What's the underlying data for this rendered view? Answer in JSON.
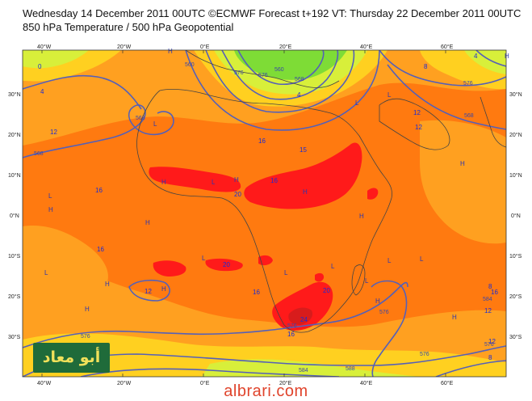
{
  "header": {
    "line1": "Wednesday 14 December 2011 00UTC ©ECMWF Forecast t+192 VT: Thursday 22 December 2011 00UTC",
    "line2": "850 hPa Temperature / 500 hPa Geopotential"
  },
  "axes": {
    "lon_ticks": [
      "40°W",
      "20°W",
      "0°E",
      "20°E",
      "40°E",
      "60°E"
    ],
    "lat_ticks_left": [
      "30°N",
      "20°N",
      "10°N",
      "0°N",
      "10°S",
      "20°S",
      "30°S"
    ],
    "lat_ticks_right": [
      "30°N",
      "20°N",
      "10°N",
      "0°N",
      "10°S",
      "20°S",
      "30°S"
    ]
  },
  "temp_labels": [
    "0",
    "4",
    "12",
    "12",
    "16",
    "20",
    "20",
    "16",
    "15",
    "16",
    "20",
    "24",
    "16",
    "12",
    "16",
    "12",
    "8",
    "4",
    "8",
    "12",
    "16",
    "8",
    "12",
    "16",
    "4"
  ],
  "geo_labels": [
    "560",
    "568",
    "576",
    "576",
    "568",
    "576",
    "568",
    "560",
    "568",
    "576",
    "576",
    "584",
    "588",
    "576",
    "576",
    "584",
    "576"
  ],
  "pressure_marks": [
    "H",
    "H",
    "H",
    "H",
    "H",
    "H",
    "H",
    "H",
    "H",
    "H",
    "H",
    "H",
    "H",
    "H",
    "L",
    "L",
    "L",
    "L",
    "L",
    "L",
    "L",
    "L",
    "L",
    "L",
    "L",
    "L"
  ],
  "logo_text": "أبو معاد",
  "footer": "albrari.com",
  "colors": {
    "hot_red": "#ff1a1a",
    "dark_red": "#d81c1c",
    "orange": "#ff7a10",
    "orange_light": "#ffa020",
    "yellow": "#ffd020",
    "yellow_green": "#d8ef3a",
    "green": "#7edc36",
    "contour": "#5560b8",
    "label": "#1a2bd6"
  }
}
